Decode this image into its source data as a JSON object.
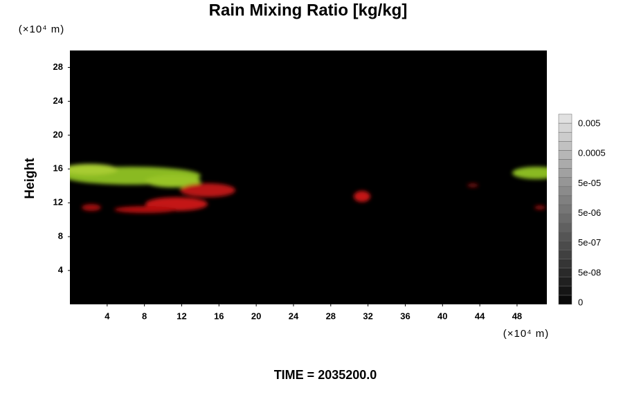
{
  "chart_data": {
    "type": "heatmap",
    "title": "Rain Mixing Ratio [kg/kg]",
    "y_label": "Height",
    "y_unit": "(×10⁴ m)",
    "x_unit": "(×10⁴ m)",
    "xlim": [
      0,
      51.2
    ],
    "ylim": [
      0,
      30
    ],
    "xticks": [
      4,
      8,
      12,
      16,
      20,
      24,
      28,
      32,
      36,
      40,
      44,
      48
    ],
    "yticks": [
      4,
      8,
      12,
      16,
      20,
      24,
      28
    ],
    "colorbar_ticks": [
      0,
      {
        "value": 5e-08,
        "label": "5e-08"
      },
      {
        "value": 5e-07,
        "label": "5e-07"
      },
      {
        "value": 5e-06,
        "label": "5e-06"
      },
      {
        "value": 5e-05,
        "label": "5e-05"
      },
      0.0005,
      0.005
    ],
    "footer": "TIME = 2035200.0"
  }
}
